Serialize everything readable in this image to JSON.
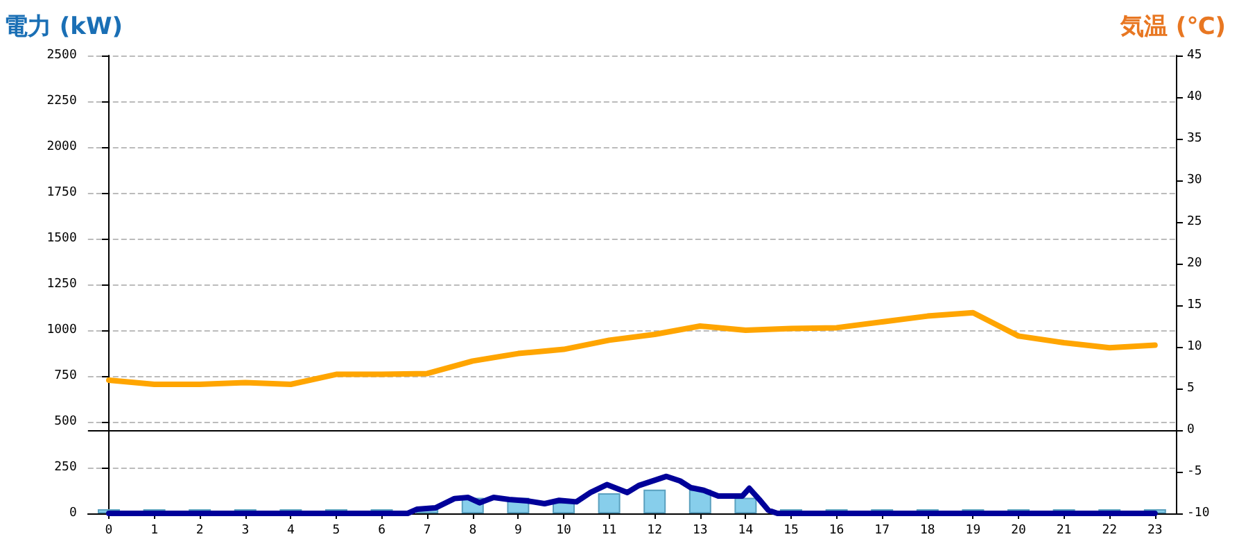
{
  "chart_data": {
    "type": "bar",
    "ylabel": "電力 (kW)",
    "y2label": "気温 (℃)",
    "xlim": [
      -0.46,
      23.46
    ],
    "xticks": [
      0,
      1,
      2,
      3,
      4,
      5,
      6,
      7,
      8,
      9,
      10,
      11,
      12,
      13,
      14,
      15,
      16,
      17,
      18,
      19,
      20,
      21,
      22,
      23
    ],
    "ylim": [
      0,
      2500
    ],
    "yticks": [
      0,
      250,
      500,
      750,
      1000,
      1250,
      1500,
      1750,
      2000,
      2250,
      2500
    ],
    "y2lim": [
      -10,
      45
    ],
    "y2ticks": [
      -10,
      -5,
      0,
      5,
      10,
      15,
      20,
      25,
      30,
      35,
      40,
      45
    ],
    "grid": "y",
    "series": [
      {
        "color": "#87ceeb",
        "x": [
          0,
          1,
          2,
          3,
          4,
          5,
          6,
          7,
          8,
          9,
          10,
          11,
          12,
          13,
          14,
          15,
          16,
          17,
          18,
          19,
          20,
          21,
          22,
          23
        ],
        "values": [
          0,
          0,
          0,
          0,
          0,
          0,
          0,
          30,
          85,
          85,
          60,
          110,
          130,
          130,
          85,
          0,
          0,
          0,
          0,
          0,
          0,
          0,
          0,
          0
        ]
      },
      {
        "type": "line",
        "color": "#000099",
        "marker": "none",
        "x": [
          0,
          6.57,
          6.78,
          7.18,
          7.6,
          7.9,
          8.15,
          8.46,
          8.8,
          9.2,
          9.58,
          9.9,
          10.28,
          10.59,
          10.95,
          11.4,
          11.65,
          12.26,
          12.56,
          12.8,
          13.08,
          13.4,
          13.93,
          14.08,
          14.3,
          14.5,
          14.7,
          23
        ],
        "values": [
          0,
          0,
          23,
          30,
          81,
          87,
          58,
          87,
          76,
          68,
          53,
          71,
          63,
          114,
          157,
          114,
          152,
          202,
          177,
          140,
          126,
          95,
          95,
          137,
          76,
          17,
          0,
          0
        ]
      },
      {
        "type": "line",
        "axis": "y2",
        "color": "#ffa500",
        "marker": "none",
        "x": [
          0,
          1,
          2,
          3,
          4,
          5,
          6,
          7,
          8,
          9,
          10,
          11,
          12,
          13,
          14,
          15,
          16,
          17,
          18,
          19,
          20,
          21,
          22,
          23
        ],
        "values": [
          6.0,
          5.5,
          5.5,
          5.7,
          5.5,
          6.7,
          6.7,
          6.8,
          8.3,
          9.2,
          9.7,
          10.8,
          11.5,
          12.5,
          12.0,
          12.2,
          12.3,
          13.0,
          13.7,
          14.1,
          11.3,
          10.5,
          9.9,
          10.2
        ]
      }
    ],
    "ref_lines": [
      {
        "axis": "y2",
        "value": 0,
        "color": "#000000",
        "line_style": "solid"
      }
    ]
  }
}
